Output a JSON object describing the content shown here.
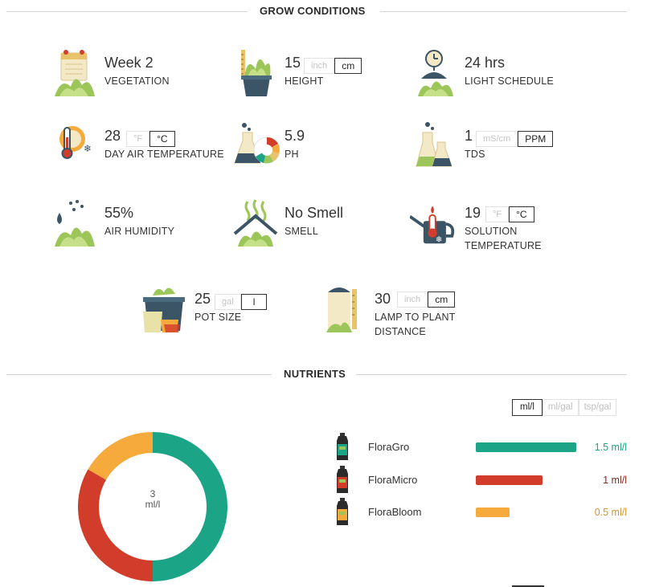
{
  "grow_conditions": {
    "title": "GROW CONDITIONS",
    "items": [
      {
        "id": "vegetation",
        "value": "Week 2",
        "label": "VEGETATION",
        "units": []
      },
      {
        "id": "height",
        "value": "15",
        "label": "HEIGHT",
        "units": [
          "inch",
          "cm"
        ],
        "active_unit": "cm"
      },
      {
        "id": "light-schedule",
        "value": "24 hrs",
        "label": "LIGHT SCHEDULE",
        "units": []
      },
      {
        "id": "day-air-temperature",
        "value": "28",
        "label": "DAY AIR TEMPERATURE",
        "units": [
          "°F",
          "°C"
        ],
        "active_unit": "°C"
      },
      {
        "id": "ph",
        "value": "5.9",
        "label": "PH",
        "units": []
      },
      {
        "id": "tds",
        "value": "1",
        "label": "TDS",
        "units": [
          "mS/cm",
          "PPM"
        ],
        "active_unit": "PPM"
      },
      {
        "id": "air-humidity",
        "value": "55%",
        "label": "AIR HUMIDITY",
        "units": []
      },
      {
        "id": "smell",
        "value": "No Smell",
        "label": "SMELL",
        "units": []
      },
      {
        "id": "solution-temperature",
        "value": "19",
        "label": "SOLUTION",
        "label2": "TEMPERATURE",
        "units": [
          "°F",
          "°C"
        ],
        "active_unit": "°C"
      },
      {
        "id": "pot-size",
        "value": "25",
        "label": "POT SIZE",
        "units": [
          "gal",
          "l"
        ],
        "active_unit": "l"
      },
      {
        "id": "lamp-distance",
        "value": "30",
        "label": "LAMP TO PLANT",
        "label2": "DISTANCE",
        "units": [
          "inch",
          "cm"
        ],
        "active_unit": "cm"
      }
    ]
  },
  "nutrients": {
    "title": "NUTRIENTS",
    "units": [
      "ml/l",
      "ml/gal",
      "tsp/gal"
    ],
    "active_unit": "ml/l",
    "total": {
      "value": "3",
      "unit": "ml/l"
    },
    "items": [
      {
        "name": "FloraGro",
        "amount": 1.5,
        "amount_text": "1.5 ml/l",
        "color": "#1ba586"
      },
      {
        "name": "FloraMicro",
        "amount": 1.0,
        "amount_text": "1 ml/l",
        "color": "#d23c2a"
      },
      {
        "name": "FloraBloom",
        "amount": 0.5,
        "amount_text": "0.5 ml/l",
        "color": "#f6aa3b"
      }
    ]
  },
  "colors": {
    "teal": "#1ba586",
    "red": "#d23c2a",
    "orange": "#f6aa3b",
    "navy": "#3b5567",
    "leaf": "#9cc65a"
  }
}
